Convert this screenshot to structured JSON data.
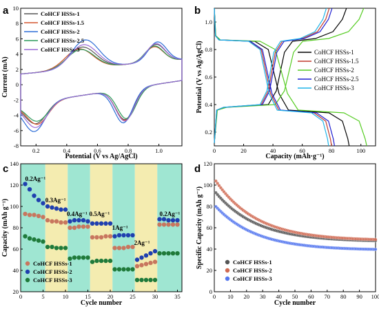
{
  "chart_data": [
    {
      "panel": "a",
      "type": "line",
      "xlabel": "Potential (V vs Ag/AgCl)",
      "ylabel": "Current (mA)",
      "xlim": [
        0.1,
        1.15
      ],
      "ylim": [
        -8,
        10
      ],
      "xticks": [
        "0.2",
        "0.4",
        "0.6",
        "0.8",
        "1.0"
      ],
      "yticks": [
        "-8",
        "-6",
        "-4",
        "-2",
        "0",
        "2",
        "4",
        "6",
        "8",
        "10"
      ],
      "legend_position": "top-left",
      "series": [
        {
          "name": "CoHCF HSSs-1",
          "color": "#555555",
          "ox_peaks": [
            [
              0.5,
              4.4
            ],
            [
              0.98,
              5.3
            ]
          ],
          "red_peaks": [
            [
              0.2,
              -5.3
            ],
            [
              0.78,
              -4.4
            ]
          ]
        },
        {
          "name": "CoHCF HSSs-1.5",
          "color": "#d4542c",
          "ox_peaks": [
            [
              0.48,
              4.2
            ],
            [
              0.97,
              5.0
            ]
          ],
          "red_peaks": [
            [
              0.21,
              -5.4
            ],
            [
              0.78,
              -4.5
            ]
          ]
        },
        {
          "name": "CoHCF HSSs-2",
          "color": "#2a6bd6",
          "ox_peaks": [
            [
              0.52,
              5.3
            ],
            [
              0.99,
              5.6
            ]
          ],
          "red_peaks": [
            [
              0.19,
              -6.3
            ],
            [
              0.77,
              -4.8
            ]
          ]
        },
        {
          "name": "CoHCF HSSs-2.5",
          "color": "#2b9a5a",
          "ox_peaks": [
            [
              0.49,
              4.1
            ],
            [
              0.97,
              5.1
            ]
          ],
          "red_peaks": [
            [
              0.21,
              -5.0
            ],
            [
              0.79,
              -4.3
            ]
          ]
        },
        {
          "name": "CoHCF HSSs-3",
          "color": "#9b6ad6",
          "ox_peaks": [
            [
              0.51,
              4.7
            ],
            [
              0.98,
              5.4
            ]
          ],
          "red_peaks": [
            [
              0.2,
              -5.8
            ],
            [
              0.78,
              -4.6
            ]
          ]
        }
      ]
    },
    {
      "panel": "b",
      "type": "line",
      "xlabel": "Capacity (mAh·g⁻¹)",
      "ylabel": "Potential (V vs Ag/AgCl)",
      "xlim": [
        0,
        110
      ],
      "ylim": [
        0.1,
        1.1
      ],
      "xticks": [
        "0",
        "20",
        "40",
        "60",
        "80",
        "100"
      ],
      "yticks": [
        "0.2",
        "0.4",
        "0.6",
        "0.8",
        "1.0"
      ],
      "legend_position": "right",
      "series": [
        {
          "name": "CoHCF HSSs-1",
          "color": "#000000",
          "end_capacity": 92
        },
        {
          "name": "CoHCF HSSs-1.5",
          "color": "#c0392b",
          "end_capacity": 80
        },
        {
          "name": "CoHCF HSSs-2",
          "color": "#55cc22",
          "end_capacity": 104
        },
        {
          "name": "CoHCF HSSs-2.5",
          "color": "#1c1cd0",
          "end_capacity": 82
        },
        {
          "name": "CoHCF HSSs-3",
          "color": "#1fb4e8",
          "end_capacity": 78
        }
      ]
    },
    {
      "panel": "c",
      "type": "scatter",
      "xlabel": "Cycle number",
      "ylabel": "Capacity (mAh g⁻¹)",
      "xlim": [
        0,
        36
      ],
      "ylim": [
        20,
        140
      ],
      "xticks": [
        "0",
        "5",
        "10",
        "15",
        "20",
        "25",
        "30",
        "35"
      ],
      "yticks": [
        "20",
        "40",
        "60",
        "80",
        "100",
        "120",
        "140"
      ],
      "legend_position": "bottom-left",
      "rate_labels": [
        "0.2Ag⁻¹",
        "0.3Ag⁻¹",
        "0.4Ag⁻¹",
        "0.5Ag⁻¹",
        "1Ag⁻¹",
        "2Ag⁻¹",
        "0.2Ag⁻¹"
      ],
      "series": [
        {
          "name": "CoHCF HSSs-1",
          "color": "#c8765e",
          "values": [
            93,
            92,
            92,
            91,
            90,
            87,
            86,
            86,
            85,
            85,
            80,
            80,
            81,
            81,
            81,
            71,
            71,
            71,
            72,
            72,
            61,
            61,
            61,
            62,
            62,
            44,
            45,
            46,
            47,
            48,
            83,
            83,
            83,
            83,
            83
          ]
        },
        {
          "name": "CoHCF HSSs-2",
          "color": "#1f3faf",
          "values": [
            121,
            116,
            110,
            106,
            103,
            100,
            99,
            98,
            97,
            97,
            86,
            87,
            87,
            87,
            86,
            84,
            84,
            84,
            84,
            84,
            72,
            73,
            73,
            73,
            73,
            50,
            52,
            54,
            56,
            58,
            88,
            88,
            87,
            87,
            87
          ]
        },
        {
          "name": "CoHCF HSSs-3",
          "color": "#1f7a3a",
          "values": [
            72,
            70,
            69,
            68,
            67,
            62,
            62,
            61,
            61,
            61,
            51,
            52,
            52,
            52,
            52,
            48,
            49,
            49,
            49,
            49,
            41,
            41,
            41,
            41,
            41,
            31,
            31,
            31,
            31,
            31,
            56,
            56,
            56,
            56,
            56
          ]
        }
      ]
    },
    {
      "panel": "d",
      "type": "scatter",
      "xlabel": "Cycle number",
      "ylabel": "Specific Capacity (mAh g⁻¹)",
      "xlim": [
        0,
        100
      ],
      "ylim": [
        0,
        120
      ],
      "xticks": [
        "0",
        "10",
        "20",
        "30",
        "40",
        "50",
        "60",
        "70",
        "80",
        "90",
        "100"
      ],
      "yticks": [
        "0",
        "20",
        "40",
        "60",
        "80",
        "100",
        "120"
      ],
      "legend_position": "bottom-left",
      "series": [
        {
          "name": "CoHCF HSSs-1",
          "color": "#555555",
          "start": 93,
          "end": 47
        },
        {
          "name": "CoHCF HSSs-2",
          "color": "#d06a52",
          "start": 104,
          "end": 48
        },
        {
          "name": "CoHCF HSSs-3",
          "color": "#5577ee",
          "start": 80,
          "end": 39
        }
      ]
    }
  ]
}
